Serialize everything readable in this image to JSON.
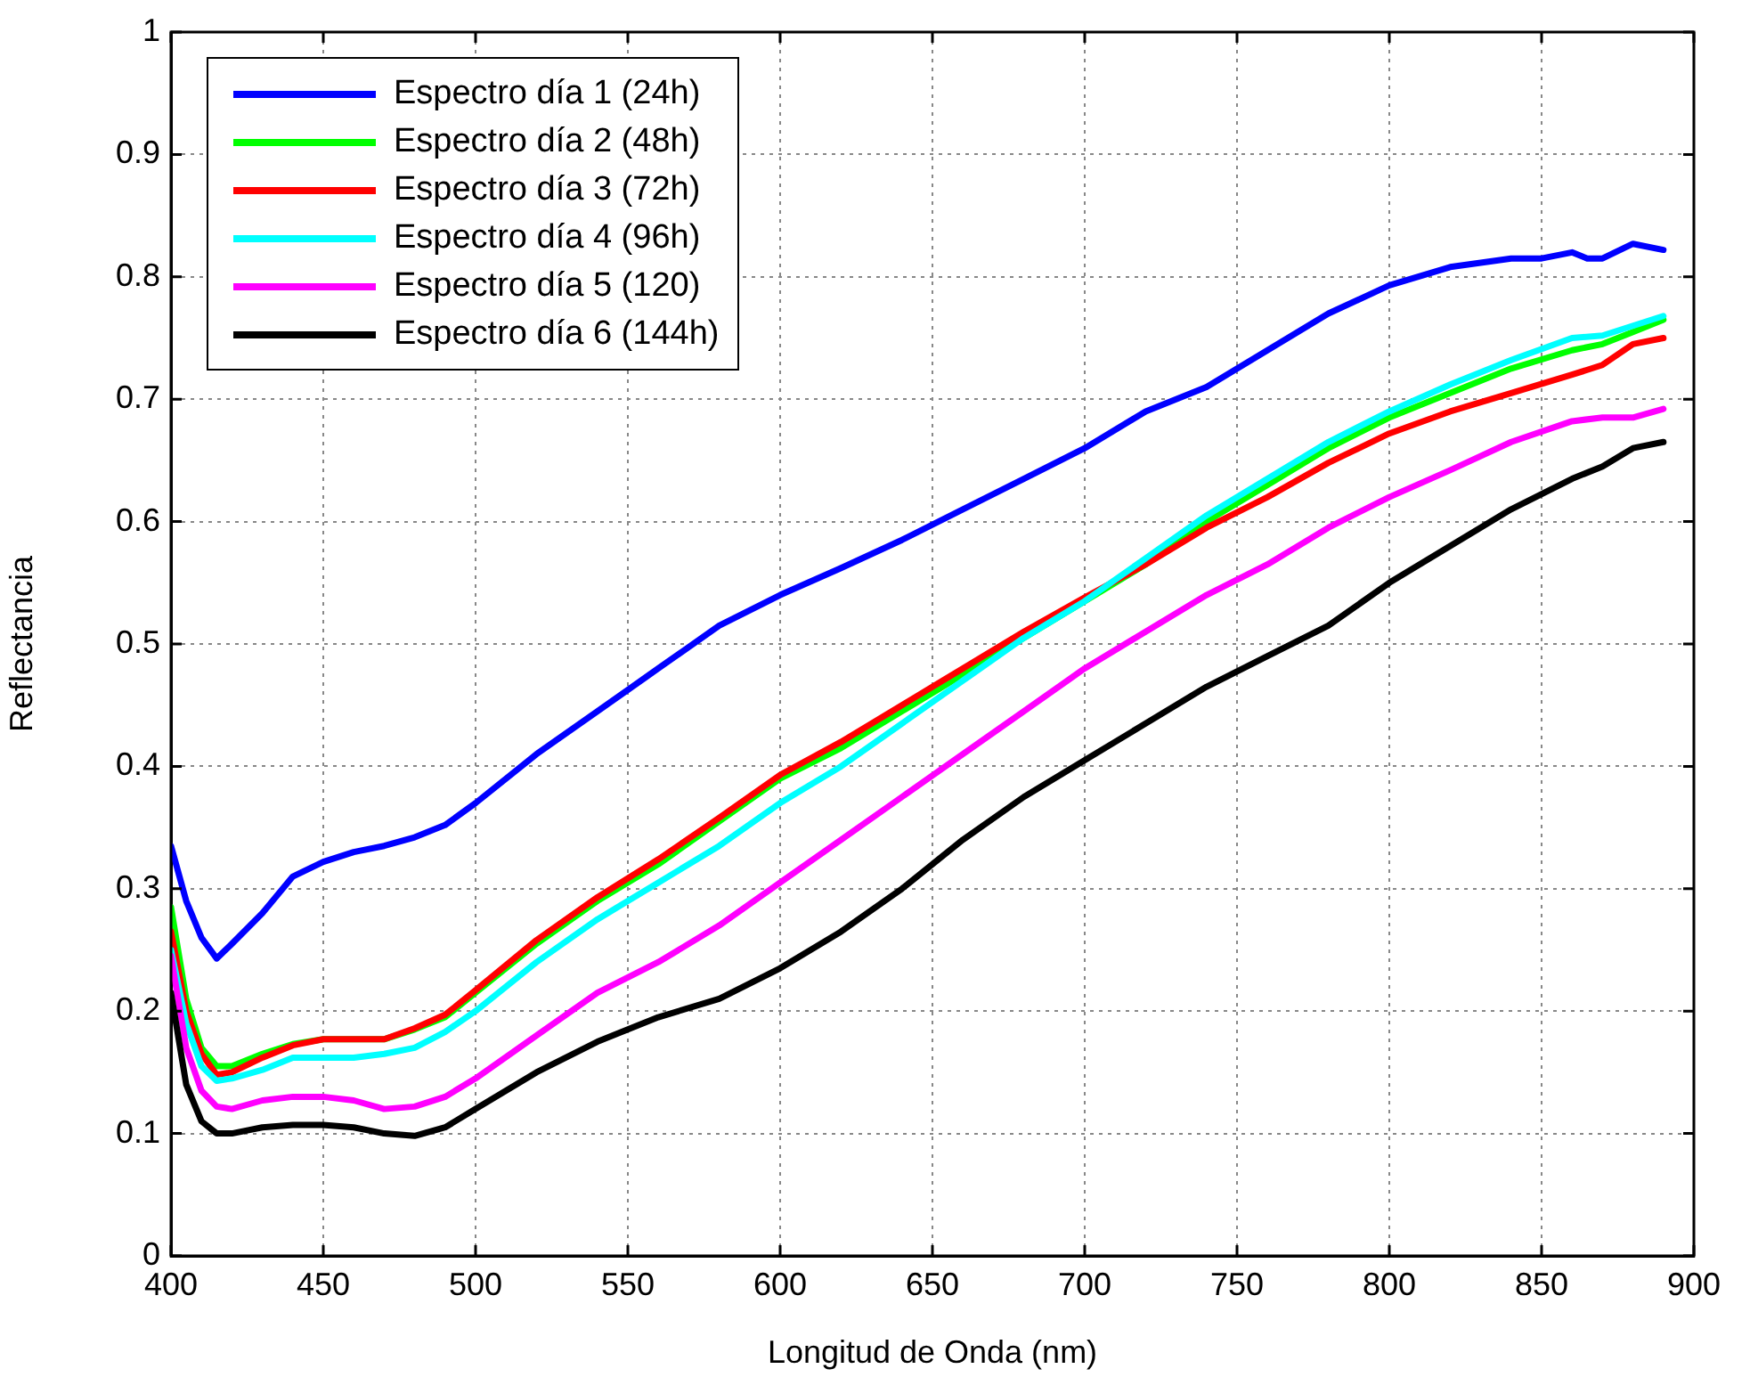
{
  "chart_data": {
    "type": "line",
    "xlabel": "Longitud de Onda (nm)",
    "ylabel": "Reflectancia",
    "xlim": [
      400,
      900
    ],
    "ylim": [
      0,
      1
    ],
    "xticks": [
      400,
      450,
      500,
      550,
      600,
      650,
      700,
      750,
      800,
      850,
      900
    ],
    "yticks": [
      0,
      0.1,
      0.2,
      0.3,
      0.4,
      0.5,
      0.6,
      0.7,
      0.8,
      0.9,
      1
    ],
    "grid": true,
    "legend": "top left",
    "marker": "none",
    "line_style": "solid",
    "x": [
      400,
      405,
      410,
      415,
      420,
      430,
      440,
      450,
      460,
      470,
      480,
      490,
      500,
      520,
      540,
      560,
      580,
      600,
      620,
      640,
      660,
      680,
      700,
      720,
      740,
      760,
      780,
      800,
      820,
      840,
      860,
      870,
      880,
      890
    ],
    "series": [
      {
        "name": "Espectro día 1 (24h)",
        "color": "#0000ff",
        "x": [
          400,
          405,
          410,
          415,
          420,
          430,
          440,
          450,
          460,
          470,
          480,
          490,
          500,
          520,
          540,
          560,
          580,
          600,
          620,
          640,
          660,
          680,
          700,
          720,
          740,
          760,
          780,
          800,
          820,
          840,
          850,
          860,
          865,
          870,
          880,
          890
        ],
        "values": [
          0.335,
          0.29,
          0.26,
          0.243,
          0.255,
          0.28,
          0.31,
          0.322,
          0.33,
          0.335,
          0.342,
          0.352,
          0.37,
          0.41,
          0.445,
          0.48,
          0.515,
          0.54,
          0.562,
          0.585,
          0.61,
          0.635,
          0.66,
          0.69,
          0.71,
          0.74,
          0.77,
          0.793,
          0.808,
          0.815,
          0.815,
          0.82,
          0.815,
          0.815,
          0.827,
          0.822
        ]
      },
      {
        "name": "Espectro día 2 (48h)",
        "color": "#00ff00",
        "values": [
          0.285,
          0.21,
          0.17,
          0.155,
          0.155,
          0.165,
          0.173,
          0.177,
          0.177,
          0.177,
          0.185,
          0.195,
          0.215,
          0.255,
          0.29,
          0.32,
          0.355,
          0.39,
          0.415,
          0.445,
          0.475,
          0.505,
          0.535,
          0.565,
          0.6,
          0.63,
          0.66,
          0.685,
          0.705,
          0.725,
          0.74,
          0.745,
          0.755,
          0.765
        ]
      },
      {
        "name": "Espectro día 3 (72h)",
        "color": "#ff0000",
        "values": [
          0.265,
          0.2,
          0.165,
          0.148,
          0.15,
          0.162,
          0.172,
          0.177,
          0.177,
          0.177,
          0.186,
          0.197,
          0.217,
          0.258,
          0.293,
          0.324,
          0.358,
          0.393,
          0.42,
          0.45,
          0.48,
          0.51,
          0.538,
          0.565,
          0.595,
          0.62,
          0.648,
          0.672,
          0.69,
          0.705,
          0.72,
          0.728,
          0.745,
          0.75
        ]
      },
      {
        "name": "Espectro día 4 (96h)",
        "color": "#00ffff",
        "values": [
          0.25,
          0.19,
          0.155,
          0.143,
          0.145,
          0.152,
          0.162,
          0.162,
          0.162,
          0.165,
          0.17,
          0.183,
          0.2,
          0.24,
          0.275,
          0.305,
          0.335,
          0.37,
          0.4,
          0.435,
          0.47,
          0.505,
          0.535,
          0.57,
          0.605,
          0.635,
          0.665,
          0.69,
          0.712,
          0.732,
          0.75,
          0.752,
          0.76,
          0.768
        ]
      },
      {
        "name": "Espectro día 5 (120)",
        "color": "#ff00ff",
        "values": [
          0.245,
          0.17,
          0.135,
          0.122,
          0.12,
          0.127,
          0.13,
          0.13,
          0.127,
          0.12,
          0.122,
          0.13,
          0.145,
          0.18,
          0.215,
          0.24,
          0.27,
          0.305,
          0.34,
          0.375,
          0.41,
          0.445,
          0.48,
          0.51,
          0.54,
          0.565,
          0.595,
          0.62,
          0.642,
          0.665,
          0.682,
          0.685,
          0.685,
          0.692
        ]
      },
      {
        "name": "Espectro día 6 (144h)",
        "color": "#000000",
        "values": [
          0.215,
          0.14,
          0.11,
          0.1,
          0.1,
          0.105,
          0.107,
          0.107,
          0.105,
          0.1,
          0.098,
          0.105,
          0.12,
          0.15,
          0.175,
          0.195,
          0.21,
          0.235,
          0.265,
          0.3,
          0.34,
          0.375,
          0.405,
          0.435,
          0.465,
          0.49,
          0.515,
          0.55,
          0.58,
          0.61,
          0.635,
          0.645,
          0.66,
          0.665
        ]
      }
    ]
  }
}
